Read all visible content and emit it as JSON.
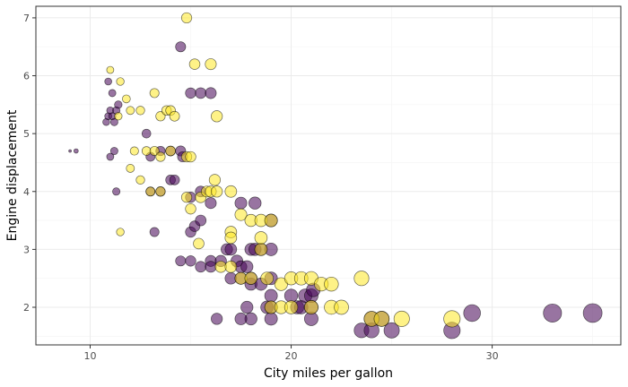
{
  "chart_data": {
    "type": "scatter",
    "title": "",
    "xlabel": "City miles per gallon",
    "ylabel": "Engine displacement",
    "xlim": [
      7.3,
      36.4
    ],
    "ylim": [
      1.35,
      7.2
    ],
    "x_ticks": [
      10,
      20,
      30
    ],
    "y_ticks": [
      2,
      3,
      4,
      5,
      6,
      7
    ],
    "grid": true,
    "legend": "none",
    "colors": {
      "purple": "#440154",
      "yellow": "#fde725"
    },
    "size_scale": {
      "min_radius": 1.5,
      "max_radius": 10.5,
      "min_value": 9,
      "max_value": 35
    },
    "series": [
      {
        "color": "#440154",
        "points": [
          [
            9,
            4.7
          ],
          [
            9.3,
            4.7
          ],
          [
            10.8,
            5.2
          ],
          [
            10.9,
            5.3
          ],
          [
            11,
            5.4
          ],
          [
            11.1,
            5.3
          ],
          [
            11.2,
            5.2
          ],
          [
            11.3,
            5.4
          ],
          [
            11.4,
            5.5
          ],
          [
            11.2,
            4.7
          ],
          [
            11,
            4.6
          ],
          [
            10.9,
            5.9
          ],
          [
            11.1,
            5.7
          ],
          [
            11.3,
            4.0
          ],
          [
            12.8,
            5.0
          ],
          [
            13,
            4.6
          ],
          [
            13.5,
            4.7
          ],
          [
            14,
            4.7
          ],
          [
            14.5,
            4.7
          ],
          [
            14.6,
            4.6
          ],
          [
            13,
            4.0
          ],
          [
            13.5,
            4.0
          ],
          [
            14,
            4.2
          ],
          [
            14.2,
            4.2
          ],
          [
            13.2,
            3.3
          ],
          [
            14.5,
            6.5
          ],
          [
            15,
            5.7
          ],
          [
            15.5,
            5.7
          ],
          [
            16,
            5.7
          ],
          [
            15,
            3.3
          ],
          [
            15.2,
            3.4
          ],
          [
            15.5,
            3.5
          ],
          [
            15,
            3.9
          ],
          [
            15.5,
            4.0
          ],
          [
            16,
            3.8
          ],
          [
            14.5,
            2.8
          ],
          [
            15,
            2.8
          ],
          [
            15.5,
            2.7
          ],
          [
            16,
            2.8
          ],
          [
            16,
            2.7
          ],
          [
            16.5,
            2.8
          ],
          [
            16.8,
            3.0
          ],
          [
            17,
            3.0
          ],
          [
            17.3,
            2.8
          ],
          [
            17.5,
            2.7
          ],
          [
            17.8,
            2.7
          ],
          [
            18,
            3.0
          ],
          [
            18.2,
            3.0
          ],
          [
            18.5,
            3.0
          ],
          [
            19,
            3.0
          ],
          [
            17.5,
            3.8
          ],
          [
            18.2,
            3.8
          ],
          [
            19,
            3.5
          ],
          [
            17,
            2.5
          ],
          [
            17.5,
            2.5
          ],
          [
            18,
            2.4
          ],
          [
            18,
            2.5
          ],
          [
            18.5,
            2.4
          ],
          [
            19,
            2.5
          ],
          [
            19,
            2.2
          ],
          [
            18.8,
            2.0
          ],
          [
            19,
            2.0
          ],
          [
            19,
            1.8
          ],
          [
            18,
            1.8
          ],
          [
            16.3,
            1.8
          ],
          [
            17.5,
            1.8
          ],
          [
            17.8,
            2.0
          ],
          [
            20,
            2.2
          ],
          [
            20.3,
            2.0
          ],
          [
            20.5,
            2.0
          ],
          [
            20.7,
            2.2
          ],
          [
            21,
            2.2
          ],
          [
            21,
            2.0
          ],
          [
            21,
            1.8
          ],
          [
            21.1,
            2.3
          ],
          [
            23.5,
            1.6
          ],
          [
            24,
            1.6
          ],
          [
            24,
            1.8
          ],
          [
            24.5,
            1.8
          ],
          [
            25,
            1.6
          ],
          [
            28,
            1.6
          ],
          [
            29,
            1.9
          ],
          [
            33,
            1.9
          ],
          [
            35,
            1.9
          ]
        ]
      },
      {
        "color": "#fde725",
        "points": [
          [
            11,
            6.1
          ],
          [
            11.5,
            5.9
          ],
          [
            12,
            5.4
          ],
          [
            11.8,
            5.6
          ],
          [
            11.4,
            5.3
          ],
          [
            12.5,
            5.4
          ],
          [
            11.5,
            3.3
          ],
          [
            12,
            4.4
          ],
          [
            12.2,
            4.7
          ],
          [
            12.8,
            4.7
          ],
          [
            13.2,
            4.7
          ],
          [
            13.5,
            4.6
          ],
          [
            14,
            4.7
          ],
          [
            14.8,
            4.6
          ],
          [
            12.5,
            4.2
          ],
          [
            13,
            4.0
          ],
          [
            13.5,
            4.0
          ],
          [
            13.2,
            5.7
          ],
          [
            13.5,
            5.3
          ],
          [
            13.8,
            5.4
          ],
          [
            14,
            5.4
          ],
          [
            14.2,
            5.3
          ],
          [
            14.8,
            7.0
          ],
          [
            15.2,
            6.2
          ],
          [
            16,
            6.2
          ],
          [
            16.3,
            5.3
          ],
          [
            15,
            4.6
          ],
          [
            14.8,
            3.9
          ],
          [
            15,
            3.7
          ],
          [
            15.5,
            3.9
          ],
          [
            15.8,
            4.0
          ],
          [
            16,
            4.0
          ],
          [
            16.2,
            4.2
          ],
          [
            16.3,
            4.0
          ],
          [
            17,
            4.0
          ],
          [
            17,
            3.3
          ],
          [
            17,
            3.2
          ],
          [
            17.5,
            3.6
          ],
          [
            18,
            3.5
          ],
          [
            18.5,
            3.5
          ],
          [
            19,
            3.5
          ],
          [
            18.5,
            3.0
          ],
          [
            18.5,
            3.2
          ],
          [
            15.4,
            3.1
          ],
          [
            16.5,
            2.7
          ],
          [
            17,
            2.7
          ],
          [
            17.5,
            2.5
          ],
          [
            18,
            2.5
          ],
          [
            18.8,
            2.5
          ],
          [
            19.5,
            2.4
          ],
          [
            20,
            2.5
          ],
          [
            20.5,
            2.5
          ],
          [
            21,
            2.5
          ],
          [
            21.5,
            2.4
          ],
          [
            22,
            2.4
          ],
          [
            23.5,
            2.5
          ],
          [
            22,
            2.0
          ],
          [
            22.5,
            2.0
          ],
          [
            19,
            2.0
          ],
          [
            19.5,
            2.0
          ],
          [
            20,
            2.0
          ],
          [
            21,
            2.0
          ],
          [
            24,
            1.8
          ],
          [
            24.5,
            1.8
          ],
          [
            25.5,
            1.8
          ],
          [
            28,
            1.8
          ]
        ]
      }
    ]
  }
}
